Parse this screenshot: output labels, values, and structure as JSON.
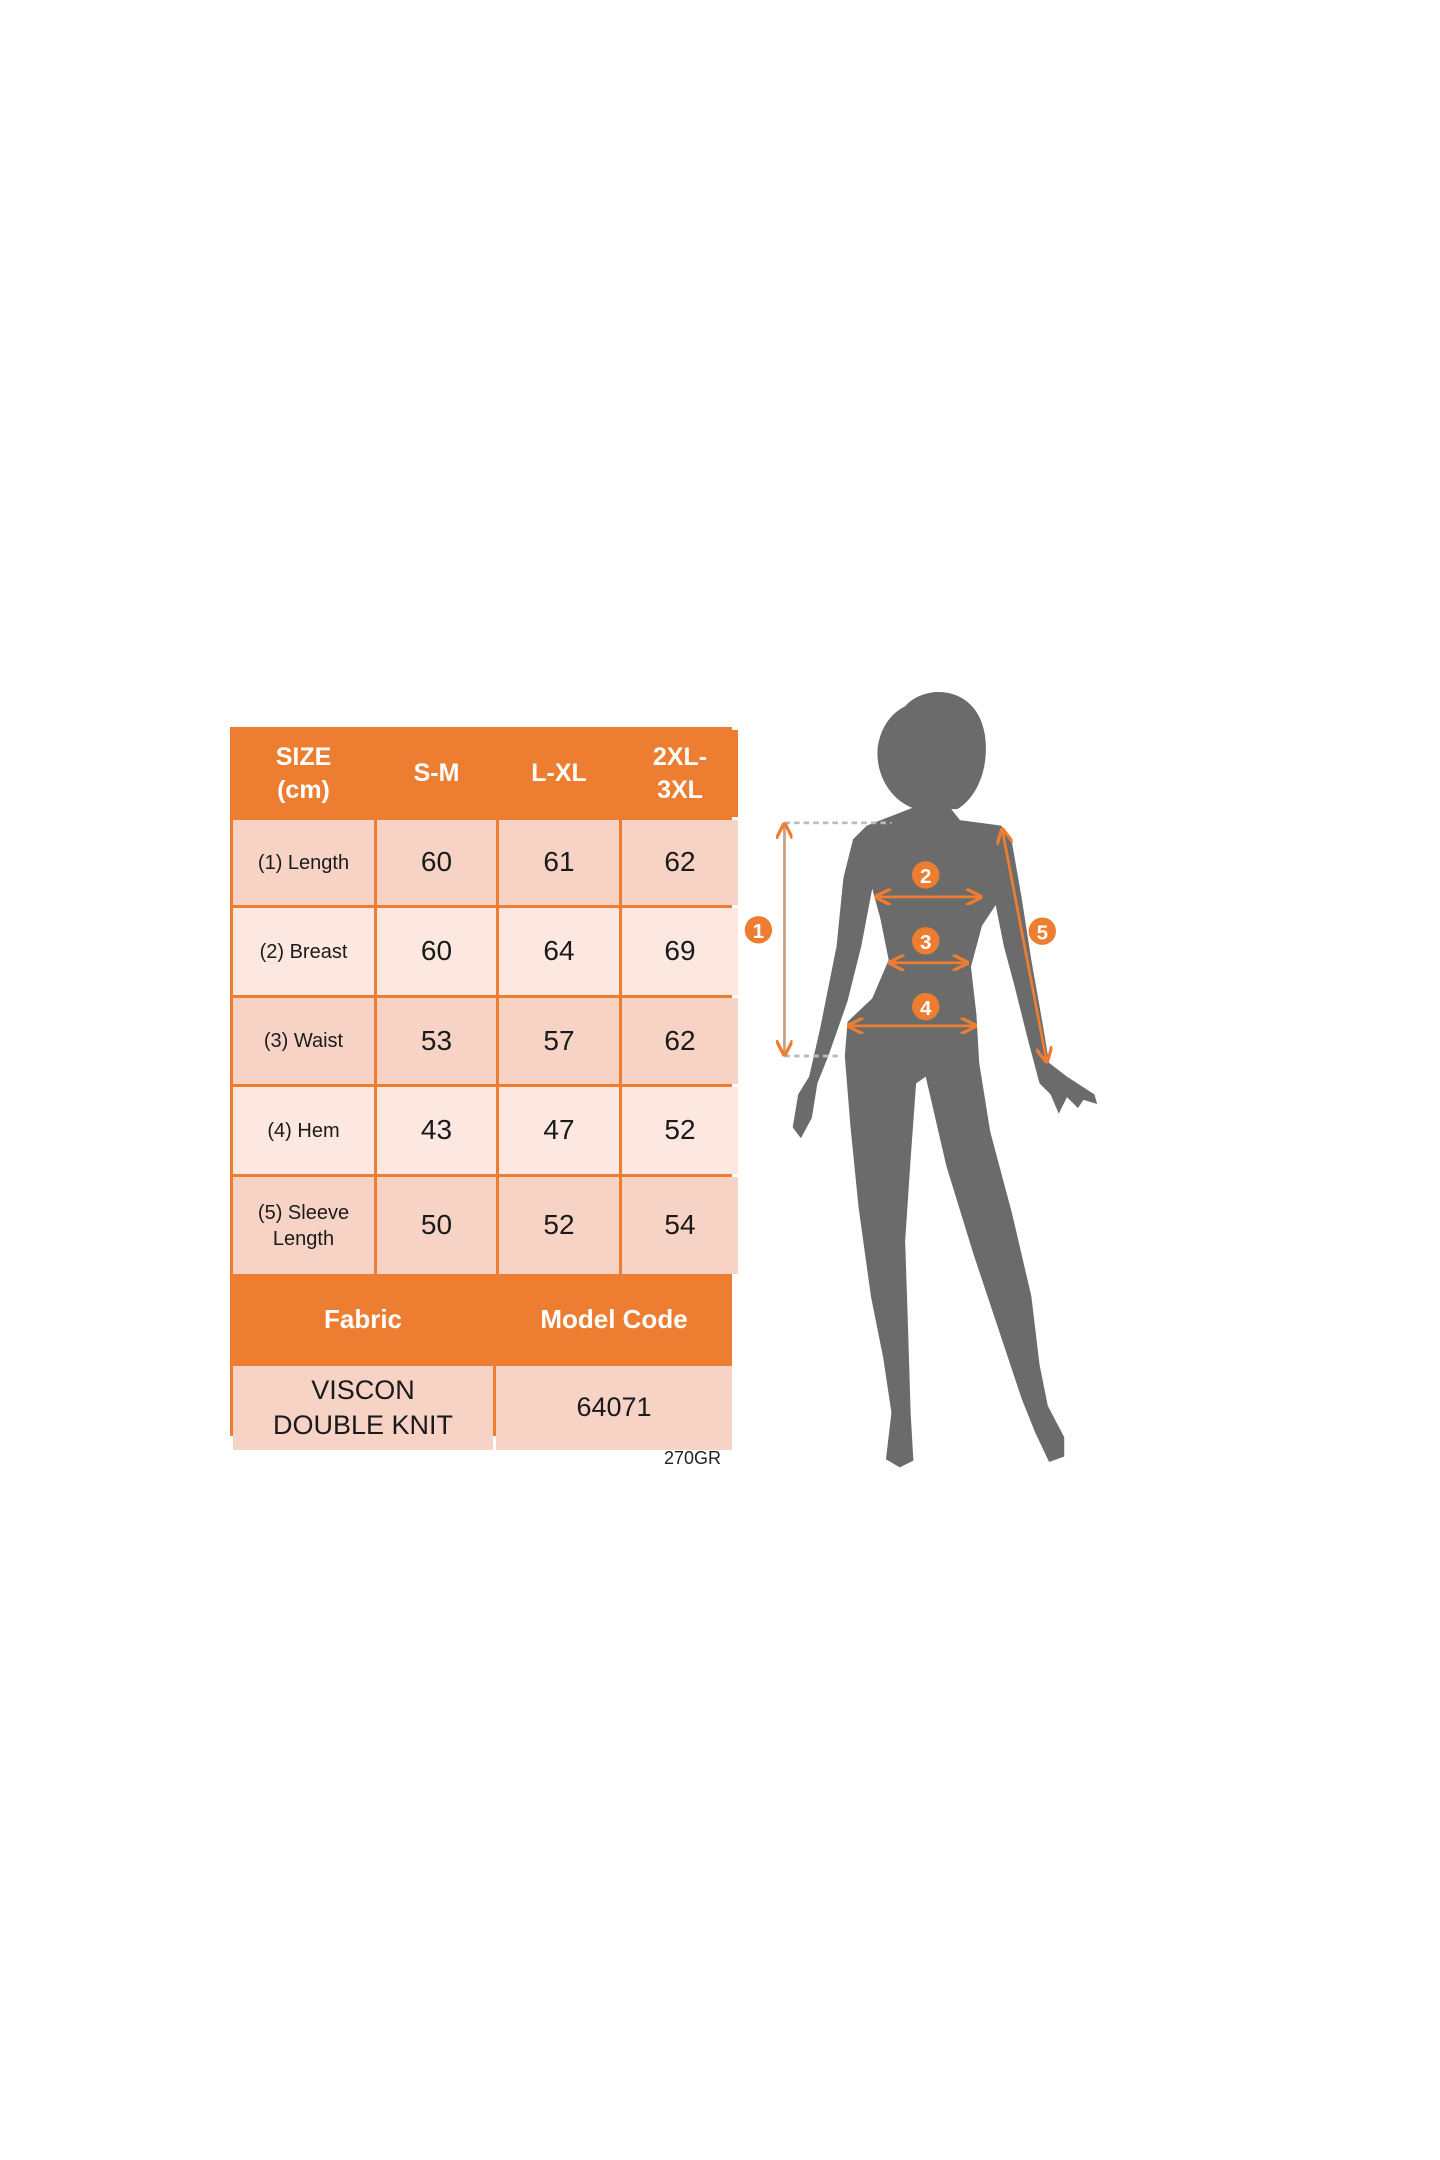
{
  "size_table": {
    "header": [
      "SIZE\n(cm)",
      "S-M",
      "L-XL",
      "2XL-\n3XL"
    ],
    "rows": [
      {
        "label": "(1) Length",
        "values": [
          "60",
          "61",
          "62"
        ]
      },
      {
        "label": "(2) Breast",
        "values": [
          "60",
          "64",
          "69"
        ]
      },
      {
        "label": "(3) Waist",
        "values": [
          "53",
          "57",
          "62"
        ]
      },
      {
        "label": "(4) Hem",
        "values": [
          "43",
          "47",
          "52"
        ]
      },
      {
        "label": "(5) Sleeve\nLength",
        "values": [
          "50",
          "52",
          "54"
        ]
      }
    ],
    "fabric_header": "Fabric",
    "model_code_header": "Model Code",
    "fabric_value": "VISCON DOUBLE KNIT",
    "model_code_value": "64071",
    "note": "270GR"
  },
  "figure": {
    "markers": [
      "1",
      "2",
      "3",
      "4",
      "5"
    ],
    "silhouette_color": "#6B6B6B",
    "accent_color": "#ED7D31"
  },
  "colors": {
    "header": "#ED7D31",
    "cell_dark": "#F6D3C5",
    "cell_light": "#FCE8E0"
  }
}
